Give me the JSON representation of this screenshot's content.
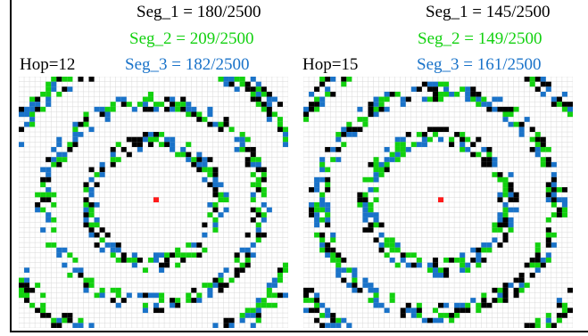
{
  "colors": {
    "seg_1": "#000000",
    "seg_2": "#12d10f",
    "seg_3": "#1a73c9",
    "center": "#ff1a1a",
    "grid": "#d9d9d9"
  },
  "panels": [
    {
      "hop_label": "Hop=12",
      "seg_1_label": "Seg_1 = 180/2500",
      "seg_2_label": "Seg_2 = 209/2500",
      "seg_3_label": "Seg_3 = 182/2500",
      "grid_size": 50,
      "rings": [
        {
          "r": 12,
          "band": 1.6
        },
        {
          "r": 20,
          "band": 1.6
        },
        {
          "r": 29,
          "band": 2.0
        }
      ]
    },
    {
      "hop_label": "Hop=15",
      "seg_1_label": "Seg_1 = 145/2500",
      "seg_2_label": "Seg_2 = 149/2500",
      "seg_3_label": "Seg_3 = 161/2500",
      "grid_size": 50,
      "rings": [
        {
          "r": 13,
          "band": 1.7
        },
        {
          "r": 22,
          "band": 1.7
        },
        {
          "r": 31,
          "band": 2.0
        }
      ]
    }
  ]
}
